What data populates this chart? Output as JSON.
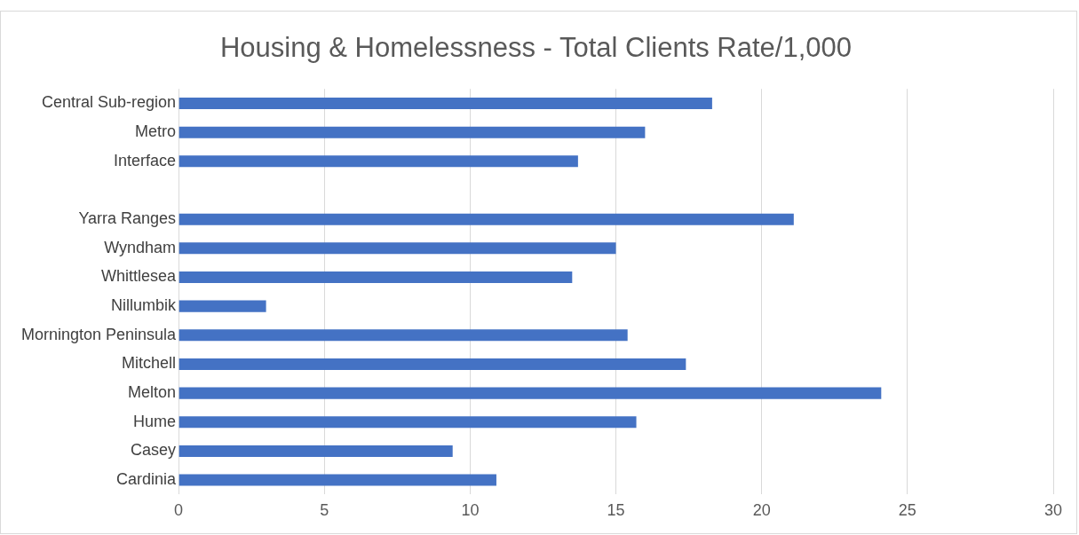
{
  "chart_data": {
    "type": "bar",
    "orientation": "horizontal",
    "title": "Housing & Homelessness - Total Clients Rate/1,000",
    "categories": [
      "Central Sub-region",
      "Metro",
      "Interface",
      null,
      "Yarra Ranges",
      "Wyndham",
      "Whittlesea",
      "Nillumbik",
      "Mornington Peninsula",
      "Mitchell",
      "Melton",
      "Hume",
      "Casey",
      "Cardinia"
    ],
    "values": [
      18.3,
      16.0,
      13.7,
      null,
      21.1,
      15.0,
      13.5,
      3.0,
      15.4,
      17.4,
      24.1,
      15.7,
      9.4,
      10.9
    ],
    "color": "#4472c4",
    "xlim": [
      0,
      30
    ],
    "xticks": [
      0,
      5,
      10,
      15,
      20,
      25,
      30
    ],
    "grid": "x"
  }
}
